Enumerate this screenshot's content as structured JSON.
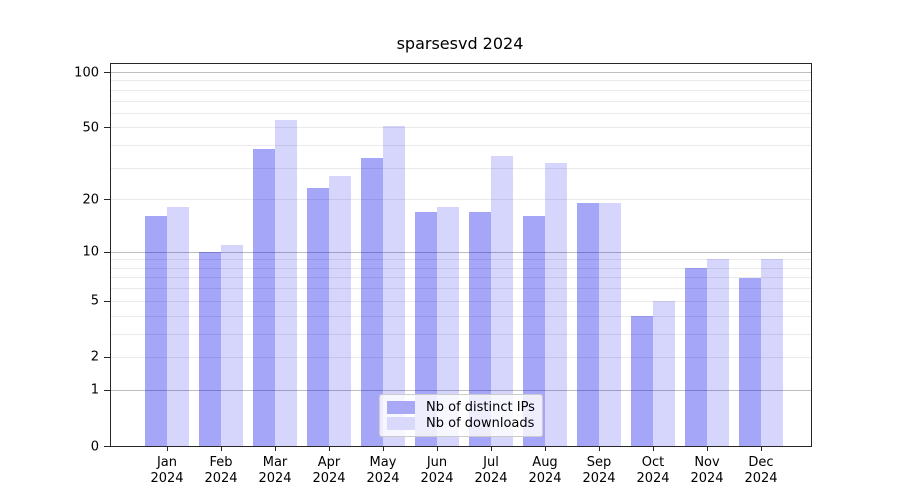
{
  "chart_data": {
    "type": "bar",
    "title": "sparsesvd 2024",
    "year": "2024",
    "categories": [
      "Jan",
      "Feb",
      "Mar",
      "Apr",
      "May",
      "Jun",
      "Jul",
      "Aug",
      "Sep",
      "Oct",
      "Nov",
      "Dec"
    ],
    "series": [
      {
        "name": "Nb of distinct IPs",
        "color": "rgba(0,0,235,0.35)",
        "legend_color": "#a8a8f7",
        "values": [
          16,
          10,
          38,
          23,
          34,
          17,
          17,
          16,
          19,
          4,
          8,
          7
        ]
      },
      {
        "name": "Nb of downloads",
        "color": "rgba(0,0,235,0.16)",
        "legend_color": "#d9d9fb",
        "values": [
          18,
          11,
          55,
          27,
          51,
          18,
          35,
          32,
          19,
          5,
          9,
          9
        ]
      }
    ],
    "yscale": "log1p",
    "ylim": [
      0,
      111
    ],
    "yticks": [
      0,
      1,
      2,
      5,
      10,
      20,
      50,
      100
    ],
    "major_gridlines": [
      1,
      10,
      100
    ],
    "minor_gridlines": [
      2,
      3,
      4,
      5,
      6,
      7,
      8,
      9,
      20,
      30,
      40,
      50,
      60,
      70,
      80,
      90
    ],
    "grid": "on",
    "legend_position": "lower center",
    "colors": {
      "axis": "#262626",
      "major_grid": "#bdbdbd",
      "minor_grid": "#eaeaea",
      "background": "#ffffff"
    }
  }
}
